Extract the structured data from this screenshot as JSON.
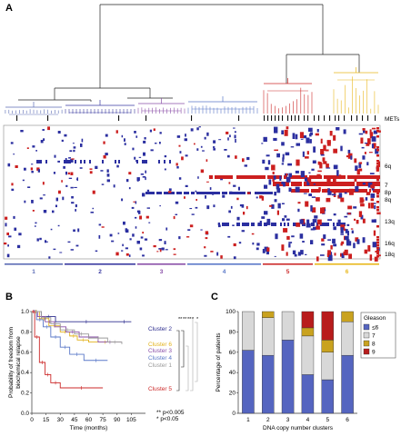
{
  "panels": {
    "a": {
      "label": "A",
      "mets_label": "METs",
      "chromosome_labels": [
        "6q",
        "7",
        "8p",
        "8q",
        "13q",
        "16q",
        "18q"
      ],
      "cluster_numbers": [
        "1",
        "2",
        "3",
        "4",
        "5",
        "6"
      ],
      "cluster_colors": [
        "#5b6cb5",
        "#3a3aa0",
        "#8a4fa8",
        "#5a78c8",
        "#cc2a2a",
        "#e8b81e"
      ],
      "gain_color": "#cc1f1f",
      "loss_color": "#2b2fa0"
    },
    "b": {
      "label": "B",
      "ylabel_line1": "Probability of freedom from",
      "ylabel_line2": "biochemical relapse",
      "xlabel": "Time (months)",
      "legend_lines": [
        "** p<0.005",
        "* p<0.05"
      ]
    },
    "c": {
      "label": "C",
      "ylabel": "Percentage of patients",
      "xlabel": "DNA copy number clusters",
      "legend_title": "Gleason"
    }
  },
  "chart_data": [
    {
      "type": "line",
      "panel": "B",
      "xlim": [
        0,
        120
      ],
      "ylim": [
        0,
        1.0
      ],
      "xticks": [
        0,
        15,
        30,
        45,
        60,
        75,
        90,
        105
      ],
      "yticks": [
        0,
        0.2,
        0.4,
        0.6,
        0.8,
        1.0
      ],
      "series": [
        {
          "name": "Cluster 2",
          "color": "#2e2e8f",
          "x": [
            0,
            10,
            25,
            90,
            105
          ],
          "y": [
            1.0,
            0.95,
            0.9,
            0.9,
            0.9
          ]
        },
        {
          "name": "Cluster 6",
          "color": "#e2b21c",
          "x": [
            0,
            8,
            18,
            30,
            40,
            48,
            60,
            95
          ],
          "y": [
            1.0,
            0.93,
            0.86,
            0.8,
            0.76,
            0.72,
            0.7,
            0.7
          ]
        },
        {
          "name": "Cluster 3",
          "color": "#8a4fa8",
          "x": [
            0,
            6,
            14,
            24,
            36,
            50,
            70,
            95
          ],
          "y": [
            1.0,
            0.95,
            0.9,
            0.85,
            0.8,
            0.75,
            0.7,
            0.7
          ]
        },
        {
          "name": "Cluster 4",
          "color": "#5a78c8",
          "x": [
            0,
            5,
            12,
            20,
            30,
            40,
            55,
            80
          ],
          "y": [
            1.0,
            0.92,
            0.85,
            0.75,
            0.65,
            0.58,
            0.52,
            0.52
          ]
        },
        {
          "name": "Cluster 1",
          "color": "#9a9a9a",
          "x": [
            0,
            10,
            20,
            30,
            45,
            60,
            80,
            95
          ],
          "y": [
            1.0,
            0.94,
            0.88,
            0.82,
            0.78,
            0.74,
            0.7,
            0.68
          ]
        },
        {
          "name": "Cluster 5",
          "color": "#cc2a2a",
          "x": [
            0,
            3,
            8,
            14,
            20,
            30,
            75
          ],
          "y": [
            1.0,
            0.75,
            0.5,
            0.38,
            0.3,
            0.25,
            0.25
          ]
        }
      ]
    },
    {
      "type": "bar",
      "panel": "C",
      "stacked": true,
      "categories": [
        "1",
        "2",
        "3",
        "4",
        "5",
        "6"
      ],
      "ylim": [
        0,
        100
      ],
      "yticks": [
        0,
        20,
        40,
        60,
        80,
        100
      ],
      "series": [
        {
          "name": "≤6",
          "color": "#5565c0",
          "values": [
            62,
            57,
            72,
            38,
            33,
            57
          ]
        },
        {
          "name": "7",
          "color": "#d8d8d8",
          "values": [
            38,
            37,
            28,
            38,
            27,
            33
          ]
        },
        {
          "name": "8",
          "color": "#c9a21f",
          "values": [
            0,
            6,
            0,
            8,
            12,
            10
          ]
        },
        {
          "name": "9",
          "color": "#b81c1c",
          "values": [
            0,
            0,
            0,
            16,
            28,
            0
          ]
        }
      ]
    }
  ]
}
